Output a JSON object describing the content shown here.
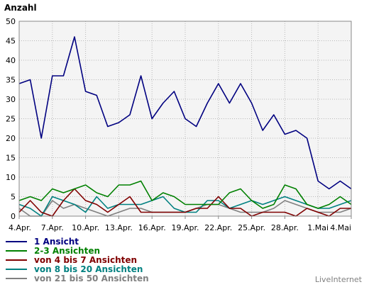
{
  "chart_data": {
    "type": "line",
    "ylabel": "Anzahl",
    "ylim": [
      0,
      50
    ],
    "yticks": [
      0,
      5,
      10,
      15,
      20,
      25,
      30,
      35,
      40,
      45,
      50
    ],
    "x_tick_labels": [
      "4.Apr.",
      "7.Apr.",
      "10.Apr.",
      "13.Apr.",
      "16.Apr.",
      "19.Apr.",
      "22.Apr.",
      "25.Apr.",
      "28.Apr.",
      "1.Mai",
      "4.Mai"
    ],
    "x_tick_every": 3,
    "grid": true,
    "legend_position": "bottom-left",
    "series": [
      {
        "name": "1 Ansicht",
        "color": "#000080",
        "values": [
          34,
          35,
          20,
          36,
          36,
          46,
          32,
          31,
          23,
          24,
          26,
          36,
          25,
          29,
          32,
          25,
          23,
          29,
          34,
          29,
          34,
          29,
          22,
          26,
          21,
          22,
          20,
          9,
          7,
          9,
          7
        ]
      },
      {
        "name": "2-3 Ansichten",
        "color": "#008000",
        "values": [
          4,
          5,
          4,
          7,
          6,
          7,
          8,
          6,
          5,
          8,
          8,
          9,
          4,
          6,
          5,
          3,
          3,
          3,
          3,
          6,
          7,
          4,
          2,
          3,
          8,
          7,
          3,
          2,
          3,
          5,
          3
        ]
      },
      {
        "name": "von 4 bis 7 Ansichten",
        "color": "#800000",
        "values": [
          1,
          4,
          1,
          0,
          4,
          7,
          4,
          3,
          1,
          3,
          5,
          1,
          1,
          1,
          1,
          1,
          2,
          2,
          5,
          2,
          2,
          0,
          1,
          1,
          1,
          0,
          2,
          1,
          0,
          2,
          2
        ]
      },
      {
        "name": "von 8 bis 20 Ansichten",
        "color": "#008080",
        "values": [
          3,
          2,
          0,
          5,
          4,
          3,
          1,
          5,
          2,
          3,
          3,
          3,
          4,
          5,
          2,
          1,
          1,
          4,
          4,
          2,
          3,
          4,
          3,
          4,
          5,
          4,
          3,
          2,
          2,
          3,
          4
        ]
      },
      {
        "name": "von 21 bis 50 Ansichten",
        "color": "#808080",
        "values": [
          2,
          0,
          0,
          4,
          2,
          3,
          2,
          1,
          0,
          1,
          2,
          2,
          1,
          1,
          1,
          1,
          2,
          3,
          3,
          2,
          1,
          1,
          1,
          2,
          4,
          3,
          2,
          1,
          1,
          1,
          2
        ]
      }
    ]
  },
  "brand": "LiveInternet"
}
